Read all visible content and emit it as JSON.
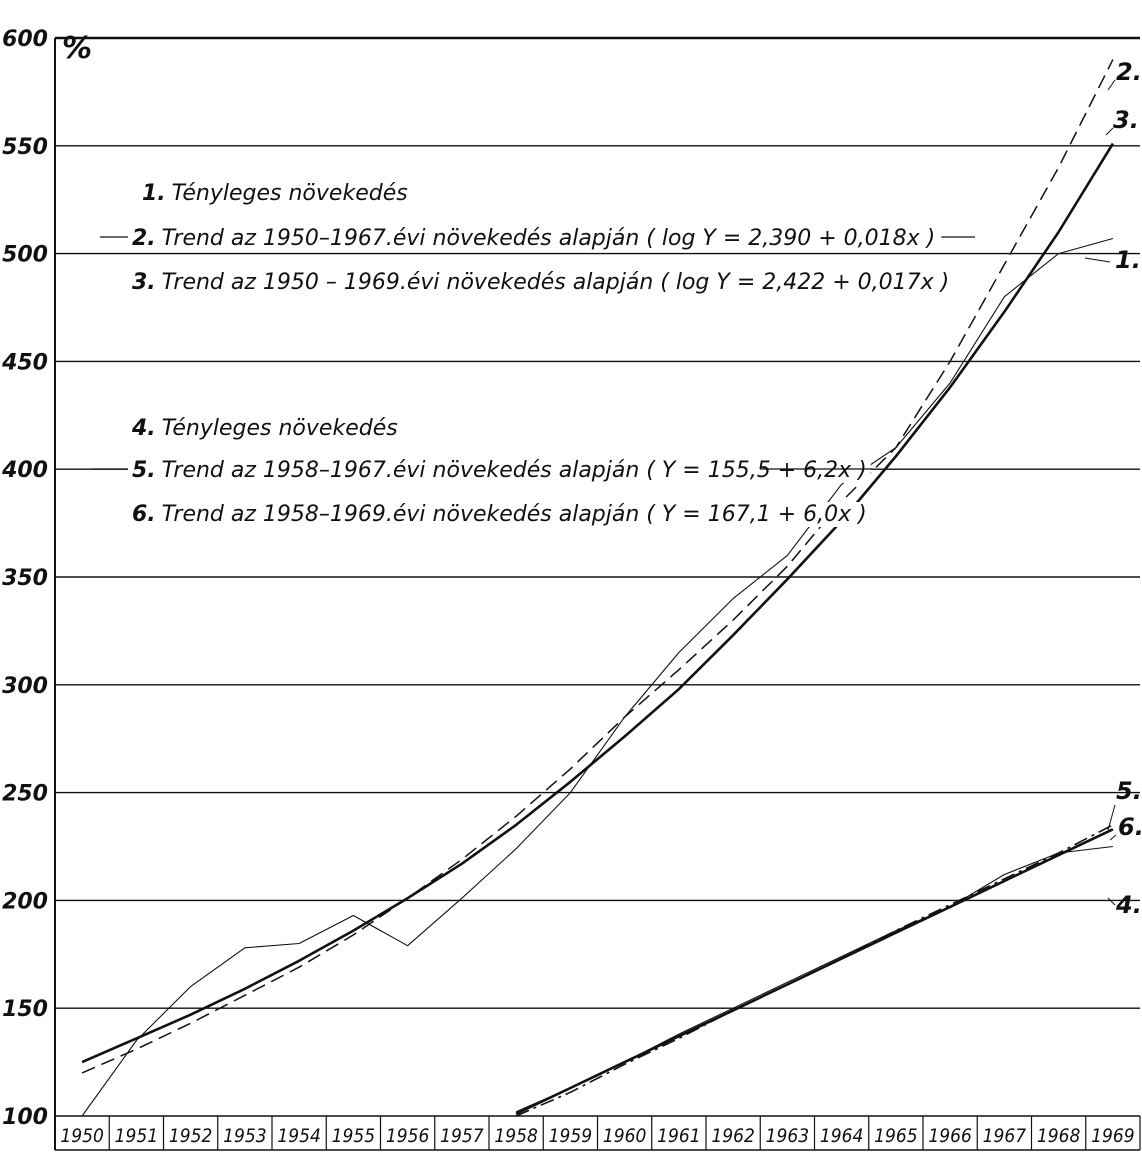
{
  "chart_data": {
    "type": "line",
    "title": "",
    "xlabel": "",
    "ylabel": "%",
    "ylim": [
      100,
      600
    ],
    "yticks": [
      "100",
      "150",
      "200",
      "250",
      "300",
      "350",
      "400",
      "450",
      "500",
      "550",
      "600"
    ],
    "xticks": [
      "1950",
      "1951",
      "1952",
      "1953",
      "1954",
      "1955",
      "1956",
      "1957",
      "1958",
      "1959",
      "1960",
      "1961",
      "1962",
      "1963",
      "1964",
      "1965",
      "1966",
      "1967",
      "1968",
      "1969"
    ],
    "grid": "horizontal",
    "legend_position": "top-left",
    "legend": [
      {
        "num": "1.",
        "text": "Tényleges növekedés"
      },
      {
        "num": "2.",
        "text": "Trend az 1950–1967.évi növekedés alapján ( log Y = 2,390 + 0,018x )"
      },
      {
        "num": "3.",
        "text": "Trend az 1950 – 1969.évi növekedés alapján ( log Y = 2,422 + 0,017x )"
      },
      {
        "num": "4.",
        "text": "Tényleges növekedés"
      },
      {
        "num": "5.",
        "text": "Trend az 1958–1967.évi növekedés alapján ( Y = 155,5 + 6,2x )"
      },
      {
        "num": "6.",
        "text": "Trend az 1958–1969.évi növekedés alapján ( Y = 167,1 + 6,0x )"
      }
    ],
    "series": [
      {
        "name": "1.",
        "style": "thin",
        "x": [
          1950,
          1951,
          1952,
          1953,
          1954,
          1955,
          1956,
          1957,
          1958,
          1959,
          1960,
          1961,
          1962,
          1963,
          1964,
          1965,
          1966,
          1967,
          1968,
          1969
        ],
        "values": [
          100,
          135,
          160,
          178,
          180,
          193,
          179,
          201,
          224,
          250,
          285,
          315,
          340,
          360,
          393,
          410,
          440,
          480,
          500,
          507
        ]
      },
      {
        "name": "2.",
        "style": "dashed",
        "x": [
          1950,
          1951,
          1952,
          1953,
          1954,
          1955,
          1956,
          1957,
          1958,
          1959,
          1960,
          1961,
          1962,
          1963,
          1964,
          1965,
          1966,
          1967,
          1968,
          1969
        ],
        "values": [
          120,
          131,
          143,
          156,
          169,
          184,
          201,
          219,
          239,
          261,
          285,
          307,
          330,
          355,
          385,
          410,
          450,
          495,
          540,
          590
        ]
      },
      {
        "name": "3.",
        "style": "thick",
        "x": [
          1950,
          1951,
          1952,
          1953,
          1954,
          1955,
          1956,
          1957,
          1958,
          1959,
          1960,
          1961,
          1962,
          1963,
          1964,
          1965,
          1966,
          1967,
          1968,
          1969
        ],
        "values": [
          125,
          136,
          147,
          159,
          172,
          186,
          201,
          217,
          235,
          255,
          276,
          298,
          323,
          349,
          376,
          406,
          438,
          473,
          510,
          551
        ]
      },
      {
        "name": "4.",
        "style": "thin",
        "x": [
          1958,
          1959,
          1960,
          1961,
          1962,
          1963,
          1964,
          1965,
          1966,
          1967,
          1968,
          1969
        ],
        "values": [
          102,
          113,
          125,
          138,
          150,
          162,
          174,
          186,
          197,
          212,
          222,
          225
        ]
      },
      {
        "name": "5.",
        "style": "dashdot",
        "x": [
          1958,
          1959,
          1960,
          1961,
          1962,
          1963,
          1964,
          1965,
          1966,
          1967,
          1968,
          1969
        ],
        "values": [
          100,
          111,
          124,
          136,
          149,
          161,
          173,
          186,
          198,
          210,
          222,
          235
        ]
      },
      {
        "name": "6.",
        "style": "thick",
        "x": [
          1958,
          1959,
          1960,
          1961,
          1962,
          1963,
          1964,
          1965,
          1966,
          1967,
          1968,
          1969
        ],
        "values": [
          101,
          113,
          125,
          137,
          149,
          161,
          173,
          185,
          197,
          209,
          221,
          233
        ]
      }
    ]
  },
  "colors": {
    "ink": "#111111",
    "background": "#ffffff"
  }
}
